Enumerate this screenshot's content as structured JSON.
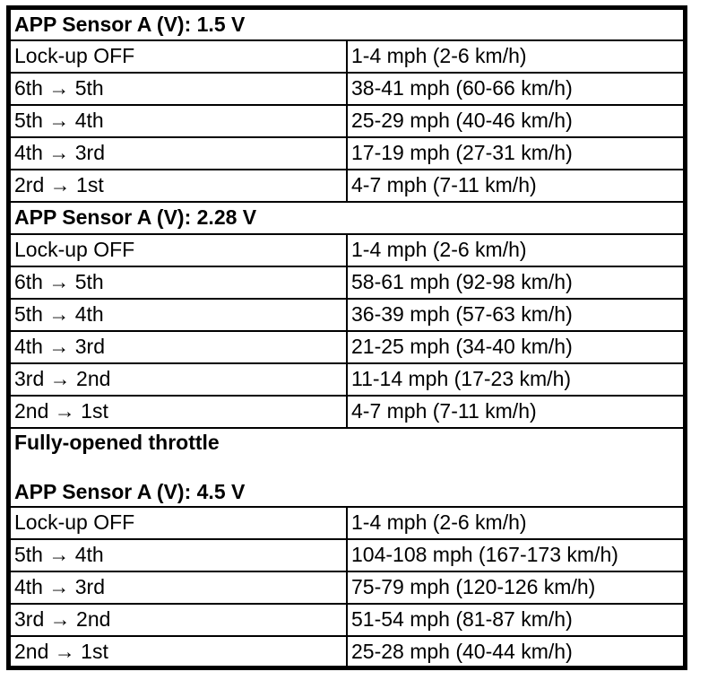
{
  "page": {
    "background_color": "#ffffff",
    "text_color": "#000000",
    "border_color": "#000000"
  },
  "table": {
    "description": "Downshift speed table by APP sensor voltage",
    "sections": [
      {
        "header": "APP Sensor A (V): 1.5 V",
        "rows": [
          {
            "shift": "Lock-up OFF",
            "speed": "1-4 mph (2-6 km/h)"
          },
          {
            "shift": "6th → 5th",
            "speed": "38-41 mph (60-66 km/h)"
          },
          {
            "shift": "5th → 4th",
            "speed": "25-29 mph (40-46 km/h)"
          },
          {
            "shift": "4th → 3rd",
            "speed": "17-19 mph (27-31 km/h)"
          },
          {
            "shift": "2rd → 1st",
            "speed": "4-7 mph (7-11 km/h)"
          }
        ]
      },
      {
        "header": "APP Sensor A (V): 2.28 V",
        "rows": [
          {
            "shift": "Lock-up OFF",
            "speed": "1-4 mph (2-6 km/h)"
          },
          {
            "shift": "6th → 5th",
            "speed": "58-61 mph (92-98 km/h)"
          },
          {
            "shift": "5th → 4th",
            "speed": "36-39 mph (57-63 km/h)"
          },
          {
            "shift": "4th → 3rd",
            "speed": "21-25 mph (34-40 km/h)"
          },
          {
            "shift": "3rd → 2nd",
            "speed": "11-14 mph (17-23 km/h)"
          },
          {
            "shift": "2nd → 1st",
            "speed": "4-7 mph (7-11 km/h)"
          }
        ]
      },
      {
        "pre_header": "Fully-opened throttle",
        "header": "APP Sensor A (V): 4.5 V",
        "rows": [
          {
            "shift": "Lock-up OFF",
            "speed": "1-4 mph (2-6 km/h)"
          },
          {
            "shift": "5th → 4th",
            "speed": "104-108 mph (167-173 km/h)"
          },
          {
            "shift": "4th → 3rd",
            "speed": "75-79 mph (120-126 km/h)"
          },
          {
            "shift": "3rd → 2nd",
            "speed": "51-54 mph (81-87 km/h)"
          },
          {
            "shift": "2nd → 1st",
            "speed": "25-28 mph (40-44 km/h)"
          }
        ]
      }
    ]
  }
}
